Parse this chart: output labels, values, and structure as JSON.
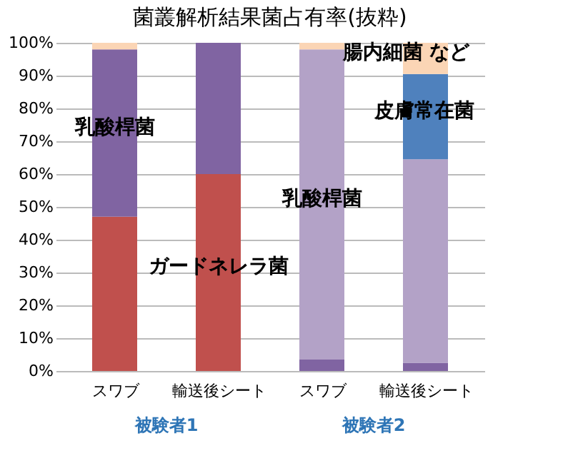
{
  "chart_data": {
    "type": "bar",
    "title": "菌叢解析結果菌占有率(抜粋)",
    "stacked": true,
    "categories": [
      "スワブ",
      "輸送後シート",
      "スワブ",
      "輸送後シート"
    ],
    "series": [
      {
        "name": "ガードネレラ菌",
        "color": "#c0504d",
        "values": [
          47,
          60,
          0,
          0
        ]
      },
      {
        "name": "乳酸桿菌",
        "color": "#8064a2",
        "values": [
          51,
          40,
          3.5,
          2.5
        ]
      },
      {
        "name": "乳酸桿菌",
        "color": "#b3a2c7",
        "values": [
          0,
          0,
          94.5,
          62
        ]
      },
      {
        "name": "皮膚常在菌",
        "color": "#4f81bd",
        "values": [
          0,
          0,
          0,
          26
        ]
      },
      {
        "name": "腸内細菌 など",
        "color": "#fbd5b5",
        "values": [
          2,
          0,
          2,
          9.5
        ]
      }
    ],
    "annotations": [
      "被験者1",
      "被験者2"
    ],
    "ylim": [
      0,
      100
    ],
    "yticks": [
      {
        "value": 0,
        "label": "0%"
      },
      {
        "value": 10,
        "label": "10%"
      },
      {
        "value": 20,
        "label": "20%"
      },
      {
        "value": 30,
        "label": "30%"
      },
      {
        "value": 40,
        "label": "40%"
      },
      {
        "value": 50,
        "label": "50%"
      },
      {
        "value": 60,
        "label": "60%"
      },
      {
        "value": 70,
        "label": "70%"
      },
      {
        "value": 80,
        "label": "80%"
      },
      {
        "value": 90,
        "label": "90%"
      },
      {
        "value": 100,
        "label": "100%"
      }
    ],
    "grid": "y"
  }
}
